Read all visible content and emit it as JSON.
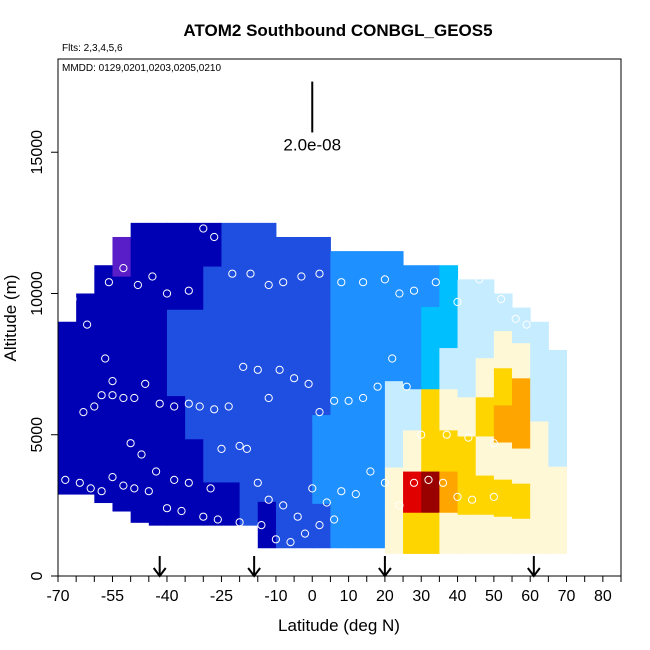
{
  "chart_data": {
    "type": "heatmap",
    "title": "ATOM2 Southbound CONBGL_GEOS5",
    "flights_label": "Flts: 2,3,4,5,6",
    "dates_label": "MMDD: 0129,0201,0203,0205,0210",
    "xlabel": "Latitude (deg N)",
    "ylabel": "Altitude (m)",
    "xlim": [
      -70,
      85
    ],
    "ylim": [
      0,
      18300
    ],
    "x_ticks": [
      -70,
      -55,
      -40,
      -25,
      -10,
      0,
      10,
      20,
      30,
      40,
      50,
      60,
      70,
      80
    ],
    "x_tick_labels": [
      "-70",
      "-55",
      "-40",
      "-25",
      "-10",
      "0",
      "10",
      "20",
      "30",
      "40",
      "50",
      "60",
      "70",
      "80"
    ],
    "x_minor_ticks": [
      -70,
      -65,
      -60,
      -55,
      -50,
      -45,
      -40,
      -35,
      -30,
      -25,
      -20,
      -15,
      -10,
      -5,
      0,
      5,
      10,
      15,
      20,
      25,
      30,
      35,
      40,
      45,
      50,
      55,
      60,
      65,
      70,
      75,
      80,
      85
    ],
    "y_ticks": [
      0,
      5000,
      10000,
      15000
    ],
    "y_tick_labels": [
      "0",
      "5000",
      "10000",
      "15000"
    ],
    "scale_bar": {
      "label": "2.0e-08",
      "latitude": 0,
      "altitude_top": 17500,
      "altitude_bottom": 15700
    },
    "arrows_latitude": [
      -42,
      -16,
      20,
      61
    ],
    "colors": {
      "violet": "#5a1ec8",
      "navy": "#0000b4",
      "blue": "#1f4fe0",
      "azure": "#1e90ff",
      "cyan": "#00bfff",
      "pale": "#c6ecff",
      "cream": "#fff8d6",
      "yellow": "#ffd500",
      "orange": "#ffa500",
      "red": "#e00000",
      "darkred": "#990000"
    },
    "columns": [
      {
        "lat": -67.5,
        "alt_min": 2900,
        "alt_max": 9000,
        "colors": [
          "navy",
          "navy",
          "navy",
          "navy",
          "navy",
          "navy"
        ]
      },
      {
        "lat": -62.5,
        "alt_min": 2900,
        "alt_max": 10000,
        "colors": [
          "navy",
          "navy",
          "navy",
          "navy",
          "navy",
          "navy",
          "navy"
        ]
      },
      {
        "lat": -57.5,
        "alt_min": 2600,
        "alt_max": 11000,
        "colors": [
          "navy",
          "navy",
          "navy",
          "navy",
          "navy",
          "navy",
          "navy"
        ]
      },
      {
        "lat": -52.5,
        "alt_min": 2300,
        "alt_max": 12000,
        "colors": [
          "navy",
          "navy",
          "navy",
          "navy",
          "navy",
          "navy",
          "violet"
        ]
      },
      {
        "lat": -47.5,
        "alt_min": 1900,
        "alt_max": 12500,
        "colors": [
          "navy",
          "navy",
          "navy",
          "navy",
          "navy",
          "navy",
          "navy"
        ]
      },
      {
        "lat": -42.5,
        "alt_min": 1800,
        "alt_max": 12500,
        "colors": [
          "navy",
          "navy",
          "navy",
          "navy",
          "navy",
          "navy",
          "navy"
        ]
      },
      {
        "lat": -37.5,
        "alt_min": 1800,
        "alt_max": 12500,
        "colors": [
          "navy",
          "navy",
          "navy",
          "blue",
          "blue",
          "navy",
          "navy"
        ]
      },
      {
        "lat": -32.5,
        "alt_min": 1800,
        "alt_max": 12500,
        "colors": [
          "navy",
          "navy",
          "blue",
          "blue",
          "blue",
          "navy",
          "navy"
        ]
      },
      {
        "lat": -27.5,
        "alt_min": 1800,
        "alt_max": 12500,
        "colors": [
          "navy",
          "blue",
          "blue",
          "blue",
          "blue",
          "blue",
          "navy"
        ]
      },
      {
        "lat": -22.5,
        "alt_min": 1800,
        "alt_max": 12500,
        "colors": [
          "navy",
          "blue",
          "blue",
          "blue",
          "blue",
          "blue",
          "blue"
        ]
      },
      {
        "lat": -17.5,
        "alt_min": 1800,
        "alt_max": 12500,
        "colors": [
          "blue",
          "blue",
          "blue",
          "blue",
          "blue",
          "blue",
          "blue"
        ]
      },
      {
        "lat": -12.5,
        "alt_min": 1000,
        "alt_max": 12500,
        "colors": [
          "navy",
          "blue",
          "blue",
          "blue",
          "blue",
          "blue",
          "blue"
        ]
      },
      {
        "lat": -7.5,
        "alt_min": 1000,
        "alt_max": 12000,
        "colors": [
          "blue",
          "blue",
          "blue",
          "blue",
          "blue",
          "blue",
          "blue"
        ]
      },
      {
        "lat": -2.5,
        "alt_min": 1000,
        "alt_max": 12000,
        "colors": [
          "blue",
          "blue",
          "blue",
          "blue",
          "blue",
          "blue",
          "blue"
        ]
      },
      {
        "lat": 2.5,
        "alt_min": 1000,
        "alt_max": 12000,
        "colors": [
          "blue",
          "azure",
          "azure",
          "blue",
          "blue",
          "blue",
          "blue"
        ]
      },
      {
        "lat": 7.5,
        "alt_min": 1000,
        "alt_max": 11500,
        "colors": [
          "azure",
          "azure",
          "azure",
          "azure",
          "azure",
          "azure",
          "azure"
        ]
      },
      {
        "lat": 12.5,
        "alt_min": 1000,
        "alt_max": 11500,
        "colors": [
          "azure",
          "azure",
          "azure",
          "azure",
          "azure",
          "azure",
          "azure"
        ]
      },
      {
        "lat": 17.5,
        "alt_min": 1000,
        "alt_max": 11500,
        "colors": [
          "azure",
          "azure",
          "azure",
          "azure",
          "azure",
          "azure",
          "azure"
        ]
      },
      {
        "lat": 22.5,
        "alt_min": 800,
        "alt_max": 11500,
        "colors": [
          "cream",
          "cream",
          "pale",
          "pale",
          "azure",
          "azure",
          "azure"
        ]
      },
      {
        "lat": 27.5,
        "alt_min": 800,
        "alt_max": 11000,
        "colors": [
          "yellow",
          "red",
          "cream",
          "pale",
          "azure",
          "azure",
          "azure"
        ]
      },
      {
        "lat": 32.5,
        "alt_min": 800,
        "alt_max": 11000,
        "colors": [
          "yellow",
          "darkred",
          "yellow",
          "yellow",
          "cyan",
          "cyan",
          "azure"
        ]
      },
      {
        "lat": 37.5,
        "alt_min": 800,
        "alt_max": 11000,
        "colors": [
          "cream",
          "orange",
          "yellow",
          "cream",
          "pale",
          "cyan",
          "cyan"
        ]
      },
      {
        "lat": 42.5,
        "alt_min": 800,
        "alt_max": 10500,
        "colors": [
          "cream",
          "yellow",
          "yellow",
          "cream",
          "pale",
          "pale",
          "pale"
        ]
      },
      {
        "lat": 47.5,
        "alt_min": 800,
        "alt_max": 10500,
        "colors": [
          "cream",
          "yellow",
          "cream",
          "yellow",
          "cream",
          "pale",
          "pale"
        ]
      },
      {
        "lat": 52.5,
        "alt_min": 800,
        "alt_max": 10000,
        "colors": [
          "cream",
          "yellow",
          "cream",
          "orange",
          "yellow",
          "cream",
          "pale"
        ]
      },
      {
        "lat": 57.5,
        "alt_min": 800,
        "alt_max": 9500,
        "colors": [
          "cream",
          "yellow",
          "cream",
          "orange",
          "orange",
          "cream",
          "pale"
        ]
      },
      {
        "lat": 62.5,
        "alt_min": 800,
        "alt_max": 9000,
        "colors": [
          "cream",
          "cream",
          "cream",
          "cream",
          "pale",
          "pale",
          "pale"
        ]
      },
      {
        "lat": 67.5,
        "alt_min": 800,
        "alt_max": 8000,
        "colors": [
          "cream",
          "cream",
          "cream",
          "pale",
          "pale",
          "pale",
          "pale"
        ]
      }
    ],
    "observations": [
      [
        -64,
        12300
      ],
      [
        -60,
        11600
      ],
      [
        -56,
        10400
      ],
      [
        -52,
        10900
      ],
      [
        -48,
        10300
      ],
      [
        -44,
        10600
      ],
      [
        -40,
        10000
      ],
      [
        -34,
        10100
      ],
      [
        -30,
        12300
      ],
      [
        -27,
        12000
      ],
      [
        -22,
        10700
      ],
      [
        -17,
        10700
      ],
      [
        -12,
        10300
      ],
      [
        -8,
        10400
      ],
      [
        -3,
        10600
      ],
      [
        2,
        10700
      ],
      [
        8,
        10400
      ],
      [
        14,
        10400
      ],
      [
        20,
        10500
      ],
      [
        24,
        10000
      ],
      [
        28,
        10100
      ],
      [
        34,
        10400
      ],
      [
        40,
        9700
      ],
      [
        46,
        10500
      ],
      [
        52,
        9800
      ],
      [
        56,
        9100
      ],
      [
        59,
        8900
      ],
      [
        -66,
        9800
      ],
      [
        -62,
        8900
      ],
      [
        -57,
        7700
      ],
      [
        -55,
        6900
      ],
      [
        -52,
        6300
      ],
      [
        -49,
        6300
      ],
      [
        -46,
        6800
      ],
      [
        -42,
        6100
      ],
      [
        -38,
        6000
      ],
      [
        -34,
        6100
      ],
      [
        -31,
        6000
      ],
      [
        -27,
        5900
      ],
      [
        -23,
        6000
      ],
      [
        -19,
        7400
      ],
      [
        -15,
        7300
      ],
      [
        -12,
        6300
      ],
      [
        -9,
        7300
      ],
      [
        -5,
        7000
      ],
      [
        -1,
        6800
      ],
      [
        2,
        5800
      ],
      [
        6,
        6200
      ],
      [
        10,
        6200
      ],
      [
        14,
        6300
      ],
      [
        18,
        6700
      ],
      [
        22,
        7700
      ],
      [
        26,
        6700
      ],
      [
        30,
        5000
      ],
      [
        37,
        5000
      ],
      [
        43,
        4900
      ],
      [
        50,
        4700
      ],
      [
        -63,
        5800
      ],
      [
        -60,
        6000
      ],
      [
        -58,
        6400
      ],
      [
        -55,
        6400
      ],
      [
        -50,
        4700
      ],
      [
        -47,
        4300
      ],
      [
        -43,
        3700
      ],
      [
        -38,
        3400
      ],
      [
        -34,
        3300
      ],
      [
        -28,
        3100
      ],
      [
        -25,
        4500
      ],
      [
        -20,
        4600
      ],
      [
        -18,
        4500
      ],
      [
        -15,
        3300
      ],
      [
        -12,
        2700
      ],
      [
        -8,
        2500
      ],
      [
        -4,
        2100
      ],
      [
        0,
        3100
      ],
      [
        4,
        2600
      ],
      [
        8,
        3000
      ],
      [
        12,
        2900
      ],
      [
        16,
        3700
      ],
      [
        20,
        3300
      ],
      [
        24,
        2500
      ],
      [
        28,
        3300
      ],
      [
        32,
        3400
      ],
      [
        36,
        3300
      ],
      [
        40,
        2800
      ],
      [
        44,
        2700
      ],
      [
        50,
        2800
      ],
      [
        -68,
        3400
      ],
      [
        -64,
        3300
      ],
      [
        -61,
        3100
      ],
      [
        -58,
        3000
      ],
      [
        -55,
        3500
      ],
      [
        -52,
        3200
      ],
      [
        -49,
        3100
      ],
      [
        -45,
        3000
      ],
      [
        -40,
        2400
      ],
      [
        -36,
        2300
      ],
      [
        -30,
        2100
      ],
      [
        -26,
        2000
      ],
      [
        -20,
        1900
      ],
      [
        -14,
        1800
      ],
      [
        -10,
        1300
      ],
      [
        -6,
        1200
      ],
      [
        -2,
        1500
      ],
      [
        2,
        1800
      ],
      [
        6,
        2000
      ]
    ]
  }
}
